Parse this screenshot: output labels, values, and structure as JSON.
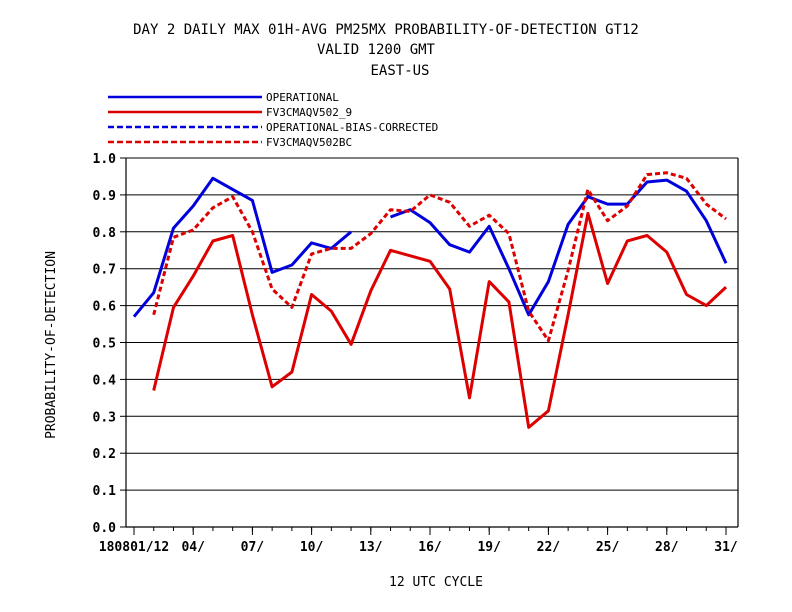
{
  "chart_data": {
    "type": "line",
    "title_lines": [
      "DAY 2 DAILY MAX   01H-AVG PM25MX PROBABILITY-OF-DETECTION GT12",
      "VALID 1200 GMT",
      "EAST-US"
    ],
    "xlabel": "12 UTC CYCLE",
    "ylabel": "PROBABILITY-OF-DETECTION",
    "ylim": [
      0.0,
      1.0
    ],
    "xlim": [
      1,
      31
    ],
    "yticks": [
      "0.0",
      "0.1",
      "0.2",
      "0.3",
      "0.4",
      "0.5",
      "0.6",
      "0.7",
      "0.8",
      "0.9",
      "1.0"
    ],
    "xticks": [
      {
        "x": 1,
        "label": "180801/12"
      },
      {
        "x": 4,
        "label": "04/"
      },
      {
        "x": 7,
        "label": "07/"
      },
      {
        "x": 10,
        "label": "10/"
      },
      {
        "x": 13,
        "label": "13/"
      },
      {
        "x": 16,
        "label": "16/"
      },
      {
        "x": 19,
        "label": "19/"
      },
      {
        "x": 22,
        "label": "22/"
      },
      {
        "x": 25,
        "label": "25/"
      },
      {
        "x": 28,
        "label": "28/"
      },
      {
        "x": 31,
        "label": "31/"
      }
    ],
    "grid": "horizontal",
    "legend_position": "top-left",
    "x": [
      1,
      2,
      3,
      4,
      5,
      6,
      7,
      8,
      9,
      10,
      11,
      12,
      13,
      14,
      15,
      16,
      17,
      18,
      19,
      20,
      21,
      22,
      23,
      24,
      25,
      26,
      27,
      28,
      29,
      30,
      31
    ],
    "series": [
      {
        "name": "OPERATIONAL",
        "color": "#0000dd",
        "dash": "solid",
        "values": [
          0.57,
          0.635,
          0.81,
          0.87,
          0.945,
          0.915,
          0.885,
          0.69,
          0.71,
          0.77,
          0.755,
          0.8,
          null,
          0.84,
          0.86,
          0.825,
          0.765,
          0.745,
          0.815,
          0.7,
          0.575,
          0.665,
          0.82,
          0.895,
          0.875,
          0.875,
          0.935,
          0.94,
          0.91,
          0.83,
          0.715
        ]
      },
      {
        "name": "FV3CMAQV502_9",
        "color": "#dd0000",
        "dash": "solid",
        "values": [
          null,
          0.37,
          0.595,
          0.68,
          0.775,
          0.79,
          0.575,
          0.38,
          0.42,
          0.63,
          0.585,
          0.495,
          0.64,
          0.75,
          0.735,
          0.72,
          0.645,
          0.35,
          0.665,
          0.61,
          0.27,
          0.315,
          0.575,
          0.85,
          0.66,
          0.775,
          0.79,
          0.745,
          0.63,
          0.6,
          0.65
        ]
      },
      {
        "name": "OPERATIONAL-BIAS-CORRECTED",
        "color": "#0000dd",
        "dash": "dashed",
        "values": [
          null,
          null,
          null,
          null,
          null,
          null,
          null,
          null,
          null,
          null,
          null,
          null,
          null,
          null,
          null,
          null,
          null,
          null,
          null,
          null,
          null,
          null,
          null,
          null,
          null,
          null,
          null,
          null,
          null,
          null,
          null
        ]
      },
      {
        "name": "FV3CMAQV502BC",
        "color": "#dd0000",
        "dash": "dashed",
        "values": [
          null,
          0.575,
          0.785,
          0.805,
          0.865,
          0.895,
          0.8,
          0.645,
          0.595,
          0.74,
          0.755,
          0.755,
          0.795,
          0.86,
          0.855,
          0.9,
          0.88,
          0.815,
          0.845,
          0.795,
          0.585,
          0.505,
          0.695,
          0.915,
          0.83,
          0.87,
          0.955,
          0.96,
          0.945,
          0.875,
          0.835
        ]
      }
    ]
  }
}
